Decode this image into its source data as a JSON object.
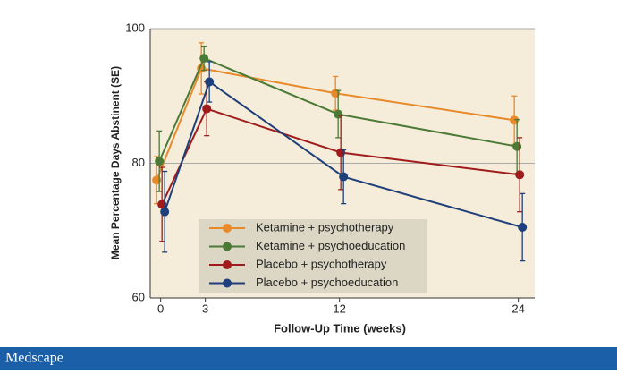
{
  "chart_data": {
    "type": "line",
    "x_label": "Follow-Up Time (weeks)",
    "y_label": "Mean Percentage Days Abstinent (SE)",
    "x": [
      0,
      3,
      12,
      24
    ],
    "xlim": [
      -0.7,
      25.1
    ],
    "xticks": [
      0,
      3,
      12,
      24
    ],
    "ylim": [
      60,
      100
    ],
    "yticks": [
      60,
      80,
      100
    ],
    "grid": true,
    "legend_position": "lower left",
    "series": [
      {
        "name": "Ketamine + psychotherapy",
        "color": "#e8892a",
        "values": [
          77.5,
          94.1,
          90.4,
          86.4
        ],
        "errors": [
          3.5,
          3.8,
          2.5,
          3.6
        ]
      },
      {
        "name": "Ketamine + psychoeducation",
        "color": "#4a7a35",
        "values": [
          80.3,
          95.6,
          87.3,
          82.5
        ],
        "errors": [
          4.5,
          1.8,
          3.5,
          4.0
        ]
      },
      {
        "name": "Placebo + psychotherapy",
        "color": "#a01c1c",
        "values": [
          73.9,
          88.1,
          81.6,
          78.3
        ],
        "errors": [
          5.5,
          4.0,
          5.5,
          5.5
        ]
      },
      {
        "name": "Placebo + psychoeducation",
        "color": "#1f3f7a",
        "values": [
          72.8,
          92.1,
          78.0,
          70.5
        ],
        "errors": [
          6.0,
          3.0,
          4.0,
          5.0
        ]
      }
    ]
  },
  "footer": {
    "brand": "Medscape"
  }
}
